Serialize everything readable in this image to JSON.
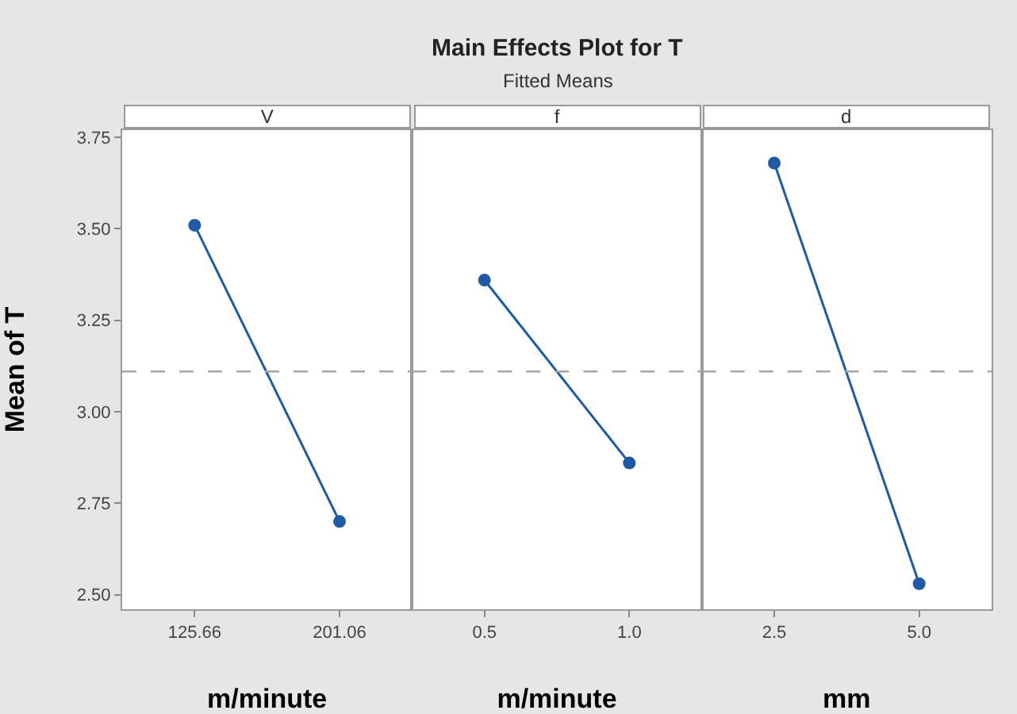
{
  "chart_data": [
    {
      "type": "line",
      "title": "V",
      "annotations": [
        "Main Effects Plot for T",
        "Fitted Means"
      ],
      "ylabel": "Mean of T",
      "xlabel": "m/minute",
      "categories": [
        "125.66",
        "201.06"
      ],
      "series": [
        {
          "color": "#1f5aa6",
          "values": [
            3.51,
            2.7
          ]
        }
      ],
      "ylim": [
        2.46,
        3.77
      ],
      "yticks": [
        {
          "value": 2.5,
          "label": "2.50"
        },
        {
          "value": 2.75,
          "label": "2.75"
        },
        {
          "value": 3.0,
          "label": "3.00"
        },
        {
          "value": 3.25,
          "label": "3.25"
        },
        {
          "value": 3.5,
          "label": "3.50"
        },
        {
          "value": 3.75,
          "label": "3.75"
        }
      ],
      "ref_lines": [
        {
          "axis": "y",
          "value": 3.11,
          "color": "#a6a6a6",
          "line_style": "dashed"
        }
      ],
      "marker": "circle"
    },
    {
      "type": "line",
      "title": "f",
      "xlabel": "m/minute",
      "categories": [
        "0.5",
        "1.0"
      ],
      "series": [
        {
          "color": "#1f5aa6",
          "values": [
            3.36,
            2.86
          ]
        }
      ],
      "ylim": [
        2.46,
        3.77
      ],
      "ref_lines": [
        {
          "axis": "y",
          "value": 3.11,
          "color": "#a6a6a6",
          "line_style": "dashed"
        }
      ],
      "marker": "circle",
      "tick_labels": "x"
    },
    {
      "type": "line",
      "title": "d",
      "xlabel": "mm",
      "categories": [
        "2.5",
        "5.0"
      ],
      "series": [
        {
          "color": "#1f5aa6",
          "values": [
            3.68,
            2.53
          ]
        }
      ],
      "ylim": [
        2.46,
        3.77
      ],
      "ref_lines": [
        {
          "axis": "y",
          "value": 3.11,
          "color": "#a6a6a6",
          "line_style": "dashed"
        }
      ],
      "marker": "circle",
      "tick_labels": "x"
    }
  ]
}
